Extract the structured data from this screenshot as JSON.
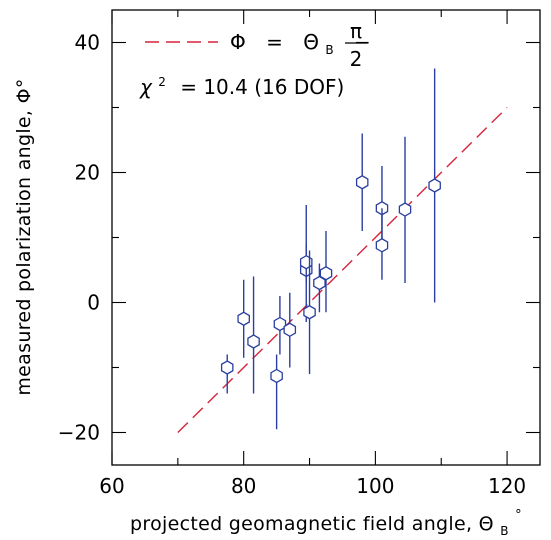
{
  "chart_data": {
    "type": "scatter",
    "title": "",
    "xlabel": "projected geomagnetic field angle, Θ",
    "xlabel_sub": "B",
    "xlabel_sup": "°",
    "ylabel": "measured polarization angle, Φ°",
    "xlim": [
      60,
      125
    ],
    "ylim": [
      -25,
      45
    ],
    "xticks": [
      60,
      80,
      100,
      120
    ],
    "yticks": [
      -20,
      0,
      20,
      40
    ],
    "grid": false,
    "legend": {
      "placement": "top-left",
      "lhs": "Φ",
      "equals": "=",
      "theta": "Θ",
      "theta_sub": "B",
      "minus": "−",
      "frac_num": "π",
      "frac_den": "2"
    },
    "annotation": {
      "chi": "χ",
      "sup": "2",
      "text": "= 10.4 (16 DOF)"
    },
    "fit_line": {
      "x": [
        70,
        120
      ],
      "y": [
        -20,
        30
      ]
    },
    "points": [
      {
        "x": 77.5,
        "y": -10,
        "ylo": -14,
        "yhi": -8
      },
      {
        "x": 80.0,
        "y": -2.5,
        "ylo": -8.5,
        "yhi": 3.5
      },
      {
        "x": 81.5,
        "y": -6,
        "ylo": -14,
        "yhi": 4
      },
      {
        "x": 85.0,
        "y": -11.3,
        "ylo": -19.5,
        "yhi": -8
      },
      {
        "x": 85.5,
        "y": -3.3,
        "ylo": -8,
        "yhi": 1
      },
      {
        "x": 87.0,
        "y": -4.2,
        "ylo": -10,
        "yhi": 1.5
      },
      {
        "x": 89.5,
        "y": 5.0,
        "ylo": -3,
        "yhi": 15
      },
      {
        "x": 89.5,
        "y": 6.2,
        "ylo": 3,
        "yhi": 9
      },
      {
        "x": 90.0,
        "y": -1.5,
        "ylo": -11,
        "yhi": 8
      },
      {
        "x": 91.5,
        "y": 3.0,
        "ylo": -1.5,
        "yhi": 6
      },
      {
        "x": 92.5,
        "y": 4.5,
        "ylo": -1.5,
        "yhi": 11
      },
      {
        "x": 98.0,
        "y": 18.5,
        "ylo": 11,
        "yhi": 26
      },
      {
        "x": 101.0,
        "y": 14.5,
        "ylo": 8,
        "yhi": 21
      },
      {
        "x": 101.0,
        "y": 8.8,
        "ylo": 3.5,
        "yhi": 14.5
      },
      {
        "x": 104.5,
        "y": 14.3,
        "ylo": 3,
        "yhi": 25.5
      },
      {
        "x": 109.0,
        "y": 18.0,
        "ylo": 0,
        "yhi": 36
      }
    ]
  }
}
